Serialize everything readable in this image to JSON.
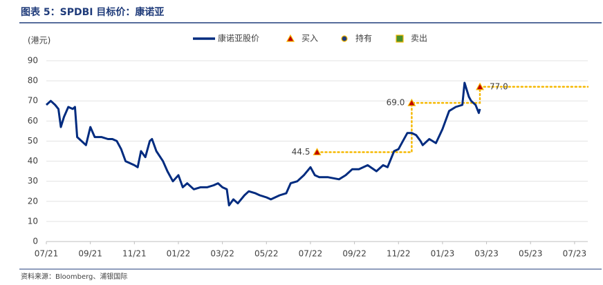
{
  "chart_data": {
    "type": "line",
    "title": "图表 5：SPDBI 目标价：康诺亚",
    "y_label": "(港元)",
    "source": "资料来源：Bloomberg、浦银国际",
    "xlim": [
      0,
      24.6
    ],
    "xticks": [
      {
        "value": 0,
        "label": "07/21"
      },
      {
        "value": 2,
        "label": "09/21"
      },
      {
        "value": 4,
        "label": "11/21"
      },
      {
        "value": 6,
        "label": "01/22"
      },
      {
        "value": 8,
        "label": "03/22"
      },
      {
        "value": 10,
        "label": "05/22"
      },
      {
        "value": 12,
        "label": "07/22"
      },
      {
        "value": 14,
        "label": "09/22"
      },
      {
        "value": 16,
        "label": "11/22"
      },
      {
        "value": 18,
        "label": "01/23"
      },
      {
        "value": 20,
        "label": "03/23"
      },
      {
        "value": 22,
        "label": "05/23"
      },
      {
        "value": 24,
        "label": "07/23"
      }
    ],
    "ylim": [
      0,
      90
    ],
    "yticks": [
      0,
      10,
      20,
      30,
      40,
      50,
      60,
      70,
      80,
      90
    ],
    "grid": true,
    "series": [
      {
        "name": "康诺亚股价",
        "color": "#002b7f",
        "marker": "line",
        "x": [
          0,
          0.2,
          0.4,
          0.55,
          0.66,
          0.8,
          1.0,
          1.2,
          1.3,
          1.4,
          1.6,
          1.8,
          2.0,
          2.2,
          2.5,
          2.8,
          3.0,
          3.2,
          3.4,
          3.6,
          3.8,
          4.0,
          4.15,
          4.3,
          4.5,
          4.7,
          4.8,
          5.0,
          5.3,
          5.5,
          5.75,
          6.0,
          6.2,
          6.4,
          6.7,
          7.0,
          7.3,
          7.6,
          7.8,
          8.0,
          8.2,
          8.3,
          8.5,
          8.7,
          9.0,
          9.2,
          9.5,
          9.7,
          10.0,
          10.2,
          10.6,
          10.9,
          11.1,
          11.4,
          11.7,
          12.0,
          12.2,
          12.4,
          12.8,
          13.3,
          13.6,
          13.9,
          14.2,
          14.6,
          15.0,
          15.3,
          15.5,
          15.8,
          16.0,
          16.2,
          16.4,
          16.6,
          16.8,
          17.0,
          17.1,
          17.4,
          17.7,
          18.0,
          18.2,
          18.3,
          18.6,
          18.9,
          19.0,
          19.2,
          19.3,
          19.5,
          19.65,
          19.7
        ],
        "values": [
          68,
          70,
          68,
          66,
          57,
          62,
          67,
          66,
          67,
          52,
          50,
          48,
          57,
          52,
          52,
          51,
          51,
          50,
          46,
          40,
          39,
          38,
          37,
          45,
          42,
          50,
          51,
          45,
          40,
          35,
          30,
          33,
          27,
          29,
          26,
          27,
          27,
          28,
          29,
          27,
          26,
          18,
          21,
          19,
          23,
          25,
          24,
          23,
          22,
          21,
          23,
          24,
          29,
          30,
          33,
          37,
          33,
          32,
          32,
          31,
          33,
          36,
          36,
          38,
          35,
          38,
          37,
          45,
          46,
          50,
          54,
          54,
          53,
          50,
          48,
          51,
          49,
          56,
          62,
          65,
          67,
          68,
          79,
          72,
          70,
          68,
          64,
          66
        ]
      },
      {
        "name": "买入",
        "color": "#c00000",
        "marker": "triangle",
        "x": [
          12.3,
          16.6,
          19.7
        ],
        "values": [
          44.5,
          69.0,
          77.0
        ],
        "value_labels": [
          "44.5",
          "69.0",
          "77.0"
        ]
      },
      {
        "name": "持有",
        "color": "#1f3b7a",
        "marker": "circle",
        "x": [],
        "values": []
      },
      {
        "name": "卖出",
        "color": "#4a8f2f",
        "marker": "square",
        "x": [],
        "values": []
      }
    ],
    "target_line": {
      "color": "#f5b800",
      "x": [
        12.3,
        16.6,
        16.6,
        19.7,
        19.7,
        24.6
      ],
      "values": [
        44.5,
        44.5,
        69.0,
        69.0,
        77.0,
        77.0
      ]
    }
  }
}
